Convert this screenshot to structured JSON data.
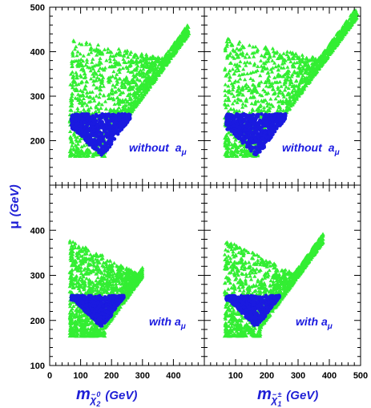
{
  "colors": {
    "green": "#33ee33",
    "blue": "#1a1ae0",
    "axis": "#000000",
    "label": "#1f1fd6"
  },
  "axes": {
    "ylabel_mu": "μ",
    "ylabel_unit": "(GeV)",
    "xlabel_left_m": "m",
    "xlabel_left_chi": "χ̃",
    "xlabel_left_sub": "2",
    "xlabel_left_sup": "0",
    "xlabel_right_m": "m",
    "xlabel_right_chi": "χ̃",
    "xlabel_right_sub": "1",
    "xlabel_right_sup": "±",
    "xunit": "(GeV)"
  },
  "chart_data": {
    "type": "scatter",
    "layout": "2x2 grid, shared axes",
    "xlim": [
      0,
      500
    ],
    "ylim": [
      100,
      500
    ],
    "x_ticks": [
      "0",
      "100",
      "200",
      "300",
      "400",
      "500"
    ],
    "y_ticks": [
      "100",
      "200",
      "300",
      "400",
      "500"
    ],
    "panels": [
      {
        "position": "top-left",
        "label_main": "without",
        "label_sym": "a",
        "label_sub": "μ",
        "x_axis": "m_chi2_0",
        "green_max_x": 450,
        "blue_region": {
          "x": [
            70,
            260
          ],
          "y": [
            165,
            260
          ]
        }
      },
      {
        "position": "top-right",
        "label_main": "without",
        "label_sym": "a",
        "label_sub": "μ",
        "x_axis": "m_chi1_pm",
        "green_max_x": 490,
        "blue_region": {
          "x": [
            70,
            260
          ],
          "y": [
            165,
            260
          ]
        }
      },
      {
        "position": "bottom-left",
        "label_main": "with",
        "label_sym": "a",
        "label_sub": "μ",
        "x_axis": "m_chi2_0",
        "green_max_x": 300,
        "blue_region": {
          "x": [
            70,
            240
          ],
          "y": [
            185,
            255
          ]
        }
      },
      {
        "position": "bottom-right",
        "label_main": "with",
        "label_sym": "a",
        "label_sub": "μ",
        "x_axis": "m_chi1_pm",
        "green_max_x": 380,
        "blue_region": {
          "x": [
            70,
            240
          ],
          "y": [
            185,
            255
          ]
        }
      }
    ],
    "series": [
      {
        "marker": "triangle",
        "color": "#33ee33"
      },
      {
        "marker": "circle",
        "color": "#1a1ae0"
      }
    ]
  }
}
